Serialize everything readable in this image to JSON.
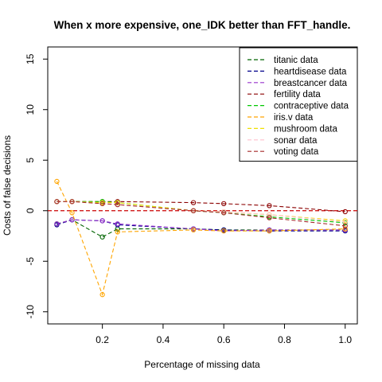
{
  "chart_data": {
    "type": "line",
    "title": "When x more expensive, one_IDK better than FFT_handle.",
    "xlabel": "Percentage of missing data",
    "ylabel": "Costs of false decisions",
    "xlim": [
      0.02,
      1.04
    ],
    "ylim": [
      -11.2,
      16.2
    ],
    "x_ticks": [
      0.2,
      0.4,
      0.6,
      0.8,
      1.0
    ],
    "x_tick_labels": [
      "0.2",
      "0.4",
      "0.6",
      "0.8",
      "1.0"
    ],
    "y_ticks": [
      -10,
      -5,
      0,
      5,
      10,
      15
    ],
    "y_tick_labels": [
      "-10",
      "-5",
      "0",
      "5",
      "10",
      "15"
    ],
    "x": [
      0.05,
      0.1,
      0.2,
      0.25,
      0.5,
      0.6,
      0.75,
      1.0
    ],
    "reference_line": {
      "y": 0,
      "color": "#cc0000"
    },
    "legend_position": "top-right",
    "series": [
      {
        "name": "titanic data",
        "color": "#006400",
        "values": [
          -1.3,
          -0.9,
          -2.6,
          -1.8,
          -1.8,
          -1.9,
          -1.9,
          -1.9
        ]
      },
      {
        "name": "heartdisease data",
        "color": "#00008b",
        "values": [
          -1.4,
          -0.9,
          -1.0,
          -1.4,
          -1.8,
          -1.9,
          -2.0,
          -2.0
        ]
      },
      {
        "name": "breastcancer data",
        "color": "#9932cc",
        "values": [
          -1.3,
          -0.9,
          -1.0,
          -1.3,
          -1.8,
          -2.0,
          -1.9,
          -1.9
        ]
      },
      {
        "name": "fertility data",
        "color": "#8b0000",
        "values": [
          0.9,
          0.9,
          0.9,
          0.9,
          0.8,
          0.7,
          0.5,
          -0.1
        ]
      },
      {
        "name": "contraceptive data",
        "color": "#00c800",
        "values": [
          0.9,
          0.9,
          0.9,
          0.8,
          0.0,
          -0.2,
          -0.6,
          -1.2
        ]
      },
      {
        "name": "iris.v data",
        "color": "#ffa500",
        "values": [
          2.9,
          -0.2,
          -8.3,
          -2.1,
          -1.9,
          -2.0,
          -2.0,
          -1.8
        ]
      },
      {
        "name": "mushroom data",
        "color": "#f0e000",
        "values": [
          0.9,
          0.9,
          0.8,
          0.8,
          0.0,
          -0.1,
          -0.4,
          -1.0
        ]
      },
      {
        "name": "sonar data",
        "color": "#ffc0cb",
        "values": [
          0.9,
          0.9,
          0.7,
          0.6,
          0.0,
          -0.1,
          -0.4,
          -1.1
        ]
      },
      {
        "name": "voting data",
        "color": "#a52a2a",
        "values": [
          0.9,
          0.9,
          0.7,
          0.6,
          0.0,
          -0.2,
          -0.7,
          -1.5
        ]
      }
    ]
  }
}
